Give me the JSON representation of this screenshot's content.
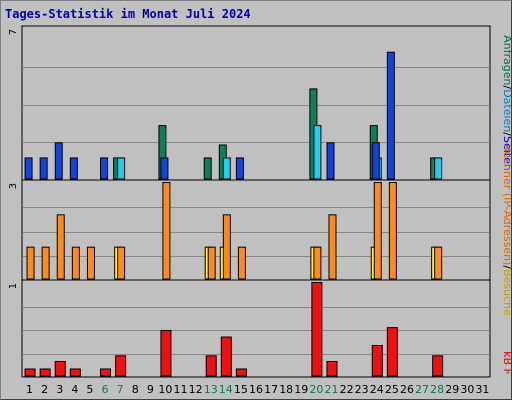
{
  "title": "Tages-Statistik im Monat Juli 2024",
  "colors": {
    "hits": "#0f7f5b",
    "files": "#22ccee",
    "pages": "#1144dd",
    "visits": "#ffee33",
    "sites": "#ff8c1a",
    "kbytes": "#ee1111",
    "weekend": "#0a7a50",
    "weekday": "#000000",
    "legend_top_hits": "#006e50",
    "legend_top_files": "#0080c0",
    "legend_top_pages": "#0000c0",
    "legend_mid_visits": "#c0a000",
    "legend_mid_sites": "#e06800",
    "legend_bottom_kbytes": "#e00000"
  },
  "legend": {
    "top": {
      "hits": "Anfragen",
      "sep1": "/",
      "files": "Dateien",
      "sep2": "/",
      "pages": "Seiten"
    },
    "middle": {
      "sites": "Rechner (IP-Adressen)",
      "sep": "/",
      "visits": "Besuche"
    },
    "bottom": {
      "kbytes": "kB F"
    }
  },
  "chart_data": [
    {
      "type": "bar",
      "panel": "top",
      "ymax_label": "7",
      "ylim": [
        0,
        7
      ],
      "categories": [
        "1",
        "2",
        "3",
        "4",
        "5",
        "6",
        "7",
        "8",
        "9",
        "10",
        "11",
        "12",
        "13",
        "14",
        "15",
        "16",
        "17",
        "18",
        "19",
        "20",
        "21",
        "22",
        "23",
        "24",
        "25",
        "26",
        "27",
        "28",
        "29",
        "30",
        "31"
      ],
      "weekend_days": [
        6,
        7,
        13,
        14,
        20,
        21,
        27,
        28
      ],
      "series": [
        {
          "name": "Anfragen",
          "values": [
            0,
            0,
            0,
            0,
            0,
            0,
            1,
            0,
            0,
            2.5,
            0,
            0,
            1,
            1.6,
            0,
            0,
            0,
            0,
            0,
            4.2,
            0,
            0,
            0,
            2.5,
            0,
            0,
            0,
            1,
            0,
            0,
            0
          ]
        },
        {
          "name": "Dateien",
          "values": [
            0,
            0,
            0,
            0,
            0,
            0,
            1,
            0,
            0,
            0,
            0,
            0,
            0,
            1,
            0,
            0,
            0,
            0,
            0,
            2.5,
            0,
            0,
            0,
            1,
            0,
            0,
            0,
            1,
            0,
            0,
            0
          ]
        },
        {
          "name": "Seiten",
          "values": [
            1,
            1,
            1.7,
            1,
            0,
            1,
            0,
            0,
            0,
            1,
            0,
            0,
            0,
            0,
            1,
            0,
            0,
            0,
            0,
            0,
            1.7,
            0,
            0,
            1.7,
            5.9,
            0,
            0,
            0,
            0,
            0,
            0
          ]
        }
      ]
    },
    {
      "type": "bar",
      "panel": "middle",
      "ymax_label": "3",
      "ylim": [
        0,
        3
      ],
      "categories": [
        "1",
        "2",
        "3",
        "4",
        "5",
        "6",
        "7",
        "8",
        "9",
        "10",
        "11",
        "12",
        "13",
        "14",
        "15",
        "16",
        "17",
        "18",
        "19",
        "20",
        "21",
        "22",
        "23",
        "24",
        "25",
        "26",
        "27",
        "28",
        "29",
        "30",
        "31"
      ],
      "series": [
        {
          "name": "Besuche",
          "values": [
            0,
            0,
            0,
            0,
            0,
            0,
            1,
            0,
            0,
            0,
            0,
            0,
            1,
            1,
            0,
            0,
            0,
            0,
            0,
            1,
            0,
            0,
            0,
            1,
            0,
            0,
            0,
            1,
            0,
            0,
            0
          ]
        },
        {
          "name": "Rechner (IP-Adressen)",
          "values": [
            1,
            1,
            2,
            1,
            1,
            0,
            1,
            0,
            0,
            3,
            0,
            0,
            1,
            2,
            1,
            0,
            0,
            0,
            0,
            1,
            2,
            0,
            0,
            3,
            3,
            0,
            0,
            1,
            0,
            0,
            0
          ]
        }
      ]
    },
    {
      "type": "bar",
      "panel": "bottom",
      "ymax_label": "1",
      "ylim": [
        0,
        1
      ],
      "categories": [
        "1",
        "2",
        "3",
        "4",
        "5",
        "6",
        "7",
        "8",
        "9",
        "10",
        "11",
        "12",
        "13",
        "14",
        "15",
        "16",
        "17",
        "18",
        "19",
        "20",
        "21",
        "22",
        "23",
        "24",
        "25",
        "26",
        "27",
        "28",
        "29",
        "30",
        "31"
      ],
      "series": [
        {
          "name": "kB F",
          "values": [
            0.08,
            0.08,
            0.16,
            0.08,
            0,
            0.08,
            0.22,
            0,
            0,
            0.49,
            0,
            0,
            0.22,
            0.42,
            0.08,
            0,
            0,
            0,
            0,
            1.0,
            0.16,
            0,
            0,
            0.33,
            0.52,
            0,
            0,
            0.22,
            0,
            0,
            0
          ]
        }
      ]
    }
  ]
}
